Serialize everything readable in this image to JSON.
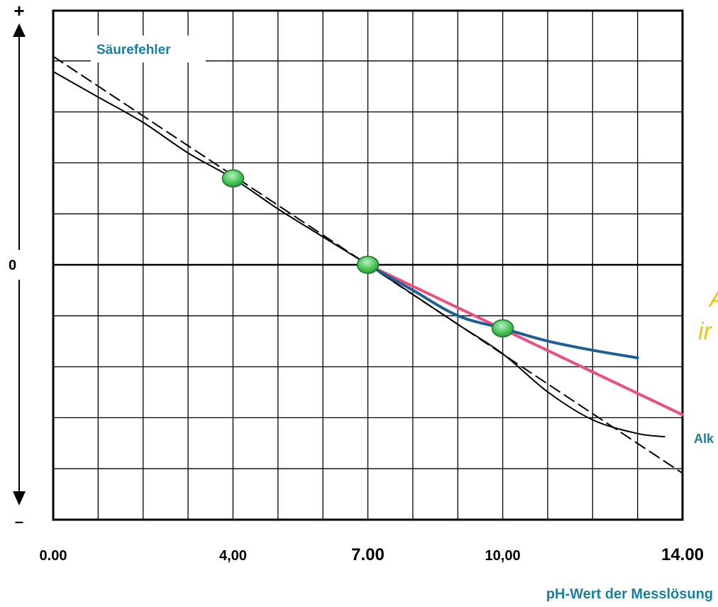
{
  "chart_data": {
    "type": "line",
    "xlabel": "pH-Wert der Messlösung",
    "xlim": [
      0,
      14
    ],
    "ylim": [
      -5,
      5
    ],
    "x_tick_labels": [
      {
        "x": 0,
        "label": "0.00"
      },
      {
        "x": 4,
        "label": "4,00"
      },
      {
        "x": 7,
        "label": "7.00"
      },
      {
        "x": 10,
        "label": "10,00"
      },
      {
        "x": 14,
        "label": "14.00"
      }
    ],
    "y_axis_labels": {
      "top": "+",
      "zero": "0",
      "bottom": "–"
    },
    "grid": true,
    "annotations": [
      {
        "text": "Säurefehler",
        "color": "#1a7fa0"
      },
      {
        "text": "Alk",
        "color": "#1a7fa0"
      },
      {
        "text": "A",
        "color": "#f1c40f"
      },
      {
        "text": "ir",
        "color": "#f1c40f"
      }
    ],
    "series": [
      {
        "style": "dashed",
        "color": "#000000",
        "x": [
          0,
          14
        ],
        "y": [
          4.1,
          -4.1
        ]
      },
      {
        "style": "solid",
        "color": "#000000",
        "x": [
          0,
          1,
          2,
          3,
          4,
          5,
          6,
          7,
          8,
          9,
          10,
          11,
          12,
          13,
          13.6
        ],
        "y": [
          3.8,
          3.3,
          2.8,
          2.2,
          1.7,
          1.1,
          0.55,
          0.0,
          -0.58,
          -1.17,
          -1.75,
          -2.5,
          -3.05,
          -3.32,
          -3.38
        ]
      },
      {
        "style": "solid",
        "color": "#ec4f7d",
        "x": [
          7,
          14
        ],
        "y": [
          0.0,
          -2.95
        ]
      },
      {
        "style": "solid",
        "color": "#1d5f96",
        "x": [
          7,
          8,
          9,
          10,
          11,
          12,
          13
        ],
        "y": [
          0.0,
          -0.5,
          -1.0,
          -1.25,
          -1.5,
          -1.68,
          -1.83
        ]
      }
    ],
    "points": [
      {
        "x": 4,
        "y": 1.7
      },
      {
        "x": 7,
        "y": 0.0
      },
      {
        "x": 10,
        "y": -1.25
      }
    ]
  }
}
